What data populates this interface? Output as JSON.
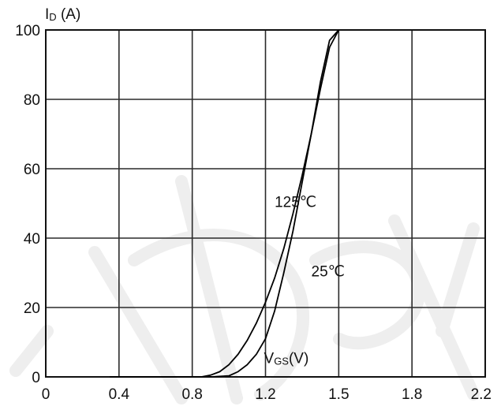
{
  "chart_data": {
    "type": "line",
    "ylabel_main": "I",
    "ylabel_sub": "D",
    "ylabel_unit": " (A)",
    "xlabel_main": "V",
    "xlabel_sub": "GS",
    "xlabel_unit": "(V)",
    "x_tick_labels": [
      "0",
      "0.4",
      "0.8",
      "1.2",
      "1.5",
      "1.8",
      "2.2"
    ],
    "y_tick_labels": [
      "0",
      "20",
      "40",
      "60",
      "80",
      "100"
    ],
    "xlim": [
      0,
      2.4
    ],
    "ylim": [
      0,
      100
    ],
    "grid": true,
    "series": [
      {
        "name": "125℃",
        "x": [
          0.35,
          0.6,
          0.85,
          0.9,
          0.95,
          1.0,
          1.05,
          1.1,
          1.15,
          1.2,
          1.25,
          1.3,
          1.35,
          1.4,
          1.45,
          1.5,
          1.55,
          1.6
        ],
        "y": [
          0,
          0,
          0,
          0.5,
          1.5,
          3.5,
          6.5,
          10.5,
          15.5,
          21.5,
          28.5,
          37,
          47,
          58,
          70,
          83,
          95,
          100
        ]
      },
      {
        "name": "25℃",
        "x": [
          0.35,
          0.6,
          0.9,
          1.0,
          1.05,
          1.1,
          1.15,
          1.2,
          1.25,
          1.3,
          1.35,
          1.4,
          1.45,
          1.5,
          1.55,
          1.6
        ],
        "y": [
          0,
          0,
          0,
          0.3,
          1.5,
          3.5,
          6.5,
          11,
          19,
          30,
          42,
          56,
          70,
          85,
          97,
          100
        ]
      }
    ],
    "series_labels": [
      {
        "text": "125℃",
        "x": 1.25,
        "y": 49
      },
      {
        "text": "25℃",
        "x": 1.45,
        "y": 29
      }
    ],
    "x_axis_label_anchor": {
      "x": 1.2,
      "y": 4
    }
  }
}
